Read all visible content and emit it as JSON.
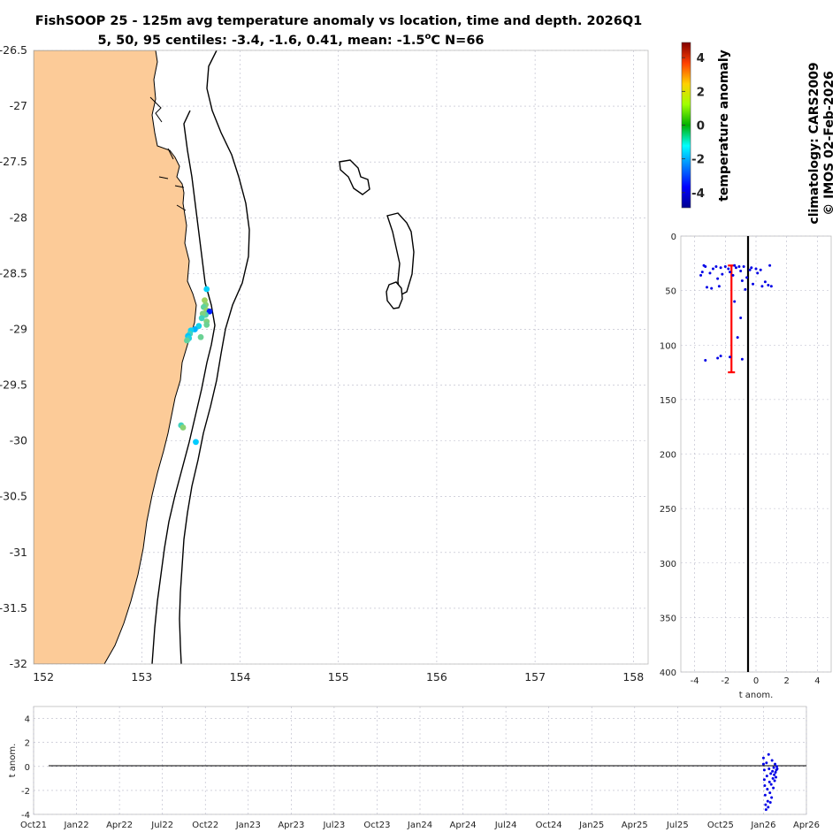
{
  "title": {
    "line1": "FishSOOP 25 - 125m avg temperature anomaly vs location, time and depth. 2026Q1",
    "line2_pre": "5, 50, 95 centiles: -3.4, -1.6, 0.41, mean: -1.5",
    "line2_sup": "o",
    "line2_post": "C N=66"
  },
  "colorbar": {
    "label": "temperature anomaly",
    "range": [
      -4.9,
      4.9
    ],
    "ticks": [
      -4,
      -2,
      0,
      2,
      4
    ],
    "tick_labels": [
      "-4",
      "-2",
      "0",
      "2",
      "4"
    ]
  },
  "credits": {
    "line1": "climatology: CARS2009",
    "line2": "© IMOS 02-Feb-2026"
  },
  "colors": {
    "land": "#FCCB98",
    "scatter": "#0000E6",
    "whisker": "#FF0000",
    "grid": "#B8B8C8"
  },
  "chart_data": [
    {
      "type": "scatter",
      "id": "map",
      "xlim": [
        151.9,
        158.15
      ],
      "ylim": [
        -32,
        -26.5
      ],
      "x_ticks": [
        152,
        153,
        154,
        155,
        156,
        157,
        158
      ],
      "x_tick_labels": [
        "152",
        "153",
        "154",
        "155",
        "156",
        "157",
        "158"
      ],
      "y_ticks": [
        -26.5,
        -27,
        -27.5,
        -28,
        -28.5,
        -29,
        -29.5,
        -30,
        -30.5,
        -31,
        -31.5,
        -32
      ],
      "y_tick_labels": [
        "-26.5",
        "-27",
        "-27.5",
        "-28",
        "-28.5",
        "-29",
        "-29.5",
        "-30",
        "-30.5",
        "-31",
        "-31.5",
        "-32"
      ],
      "points": [
        {
          "lon": 153.66,
          "lat": -28.64,
          "anom": -1.2
        },
        {
          "lon": 153.64,
          "lat": -28.74,
          "anom": 0.3
        },
        {
          "lon": 153.65,
          "lat": -28.78,
          "anom": 0.1
        },
        {
          "lon": 153.63,
          "lat": -28.8,
          "anom": -0.3
        },
        {
          "lon": 153.66,
          "lat": -28.83,
          "anom": 0.2
        },
        {
          "lon": 153.69,
          "lat": -28.84,
          "anom": -3.3
        },
        {
          "lon": 153.65,
          "lat": -28.87,
          "anom": -0.4
        },
        {
          "lon": 153.62,
          "lat": -28.86,
          "anom": 0.0
        },
        {
          "lon": 153.61,
          "lat": -28.9,
          "anom": -0.6
        },
        {
          "lon": 153.66,
          "lat": -28.93,
          "anom": 0.0
        },
        {
          "lon": 153.66,
          "lat": -28.96,
          "anom": -0.2
        },
        {
          "lon": 153.58,
          "lat": -28.97,
          "anom": -1.0
        },
        {
          "lon": 153.54,
          "lat": -29.0,
          "anom": -1.6
        },
        {
          "lon": 153.5,
          "lat": -29.01,
          "anom": -1.1
        },
        {
          "lon": 153.49,
          "lat": -29.04,
          "anom": -0.6
        },
        {
          "lon": 153.47,
          "lat": -29.06,
          "anom": -1.4
        },
        {
          "lon": 153.48,
          "lat": -29.08,
          "anom": -0.9
        },
        {
          "lon": 153.46,
          "lat": -29.1,
          "anom": -0.3
        },
        {
          "lon": 153.6,
          "lat": -29.07,
          "anom": -0.2
        },
        {
          "lon": 153.4,
          "lat": -29.86,
          "anom": -0.6
        },
        {
          "lon": 153.42,
          "lat": -29.88,
          "anom": 0.1
        },
        {
          "lon": 153.55,
          "lat": -30.01,
          "anom": -1.3
        }
      ]
    },
    {
      "type": "scatter",
      "id": "depth_profile",
      "xlabel": "t anom.",
      "xlim": [
        -4.9,
        4.9
      ],
      "ylim": [
        0,
        400
      ],
      "x_ticks": [
        -4,
        -2,
        0,
        2,
        4
      ],
      "x_tick_labels": [
        "-4",
        "-2",
        "0",
        "2",
        "4"
      ],
      "y_ticks": [
        0,
        50,
        100,
        150,
        200,
        250,
        300,
        350,
        400
      ],
      "y_tick_labels": [
        "0",
        "50",
        "100",
        "150",
        "200",
        "250",
        "300",
        "350",
        "400"
      ],
      "whisker": {
        "x": -1.6,
        "depth_top": 27,
        "depth_bottom": 125
      },
      "points": [
        {
          "x": -3.6,
          "depth": 36
        },
        {
          "x": -3.5,
          "depth": 33
        },
        {
          "x": -3.4,
          "depth": 27
        },
        {
          "x": -3.3,
          "depth": 28
        },
        {
          "x": -3.2,
          "depth": 47
        },
        {
          "x": -3.0,
          "depth": 34
        },
        {
          "x": -2.9,
          "depth": 48
        },
        {
          "x": -2.8,
          "depth": 30
        },
        {
          "x": -2.6,
          "depth": 28
        },
        {
          "x": -2.5,
          "depth": 39
        },
        {
          "x": -2.4,
          "depth": 46
        },
        {
          "x": -2.3,
          "depth": 29
        },
        {
          "x": -2.2,
          "depth": 35
        },
        {
          "x": -2.0,
          "depth": 28
        },
        {
          "x": -1.8,
          "depth": 30
        },
        {
          "x": -1.7,
          "depth": 33
        },
        {
          "x": -1.5,
          "depth": 36
        },
        {
          "x": -1.4,
          "depth": 27
        },
        {
          "x": -1.3,
          "depth": 29
        },
        {
          "x": -1.1,
          "depth": 28
        },
        {
          "x": -1.0,
          "depth": 32
        },
        {
          "x": -0.9,
          "depth": 41
        },
        {
          "x": -0.8,
          "depth": 28
        },
        {
          "x": -0.7,
          "depth": 49
        },
        {
          "x": -0.6,
          "depth": 38
        },
        {
          "x": -0.4,
          "depth": 31
        },
        {
          "x": -0.3,
          "depth": 29
        },
        {
          "x": -0.2,
          "depth": 44
        },
        {
          "x": 0.0,
          "depth": 30
        },
        {
          "x": 0.1,
          "depth": 34
        },
        {
          "x": 0.3,
          "depth": 31
        },
        {
          "x": 0.4,
          "depth": 46
        },
        {
          "x": 0.6,
          "depth": 42
        },
        {
          "x": 0.8,
          "depth": 45
        },
        {
          "x": 0.9,
          "depth": 27
        },
        {
          "x": 1.0,
          "depth": 46
        },
        {
          "x": -3.3,
          "depth": 114
        },
        {
          "x": -2.5,
          "depth": 112
        },
        {
          "x": -2.3,
          "depth": 110
        },
        {
          "x": -1.7,
          "depth": 111
        },
        {
          "x": -0.9,
          "depth": 113
        },
        {
          "x": -1.0,
          "depth": 75
        },
        {
          "x": -1.2,
          "depth": 93
        },
        {
          "x": -1.4,
          "depth": 60
        }
      ]
    },
    {
      "type": "scatter",
      "id": "time_series",
      "ylabel": "t anom.",
      "ylim": [
        -4,
        5
      ],
      "y_ticks": [
        4,
        2,
        0,
        -2,
        -4
      ],
      "y_tick_labels": [
        "4",
        "2",
        "0",
        "-2",
        "-4"
      ],
      "x_tick_labels": [
        "Oct21",
        "Jan22",
        "Apr22",
        "Jul22",
        "Oct22",
        "Jan23",
        "Apr23",
        "Jul23",
        "Oct23",
        "Jan24",
        "Apr24",
        "Jul24",
        "Oct24",
        "Jan25",
        "Apr25",
        "Jul25",
        "Oct25",
        "Jan26",
        "Apr26"
      ],
      "x_range_quarters": [
        0,
        18
      ],
      "x_quarter_pos_description": "x values in quarters since Oct21",
      "points": [
        {
          "q": 17.0,
          "y": 0.7
        },
        {
          "q": 17.0,
          "y": 0.2
        },
        {
          "q": 17.02,
          "y": -0.3
        },
        {
          "q": 17.02,
          "y": -1.1
        },
        {
          "q": 17.03,
          "y": -1.6
        },
        {
          "q": 17.04,
          "y": -2.4
        },
        {
          "q": 17.05,
          "y": -3.2
        },
        {
          "q": 17.06,
          "y": -3.6
        },
        {
          "q": 17.07,
          "y": 0.3
        },
        {
          "q": 17.08,
          "y": -0.8
        },
        {
          "q": 17.09,
          "y": -1.9
        },
        {
          "q": 17.1,
          "y": -2.9
        },
        {
          "q": 17.11,
          "y": -3.4
        },
        {
          "q": 17.12,
          "y": 1.0
        },
        {
          "q": 17.13,
          "y": -0.2
        },
        {
          "q": 17.14,
          "y": -1.3
        },
        {
          "q": 17.15,
          "y": -2.2
        },
        {
          "q": 17.16,
          "y": -3.0
        },
        {
          "q": 17.17,
          "y": -0.6
        },
        {
          "q": 17.18,
          "y": -1.5
        },
        {
          "q": 17.19,
          "y": -2.6
        },
        {
          "q": 17.2,
          "y": 0.5
        },
        {
          "q": 17.21,
          "y": -0.4
        },
        {
          "q": 17.22,
          "y": -1.0
        },
        {
          "q": 17.23,
          "y": -1.8
        },
        {
          "q": 17.24,
          "y": -0.1
        },
        {
          "q": 17.25,
          "y": -0.7
        },
        {
          "q": 17.26,
          "y": -1.2
        },
        {
          "q": 17.27,
          "y": 0.2
        },
        {
          "q": 17.28,
          "y": -0.5
        },
        {
          "q": 17.29,
          "y": -0.9
        },
        {
          "q": 17.3,
          "y": -0.3
        },
        {
          "q": 17.31,
          "y": 0.0
        },
        {
          "q": 17.32,
          "y": -0.2
        }
      ]
    }
  ]
}
